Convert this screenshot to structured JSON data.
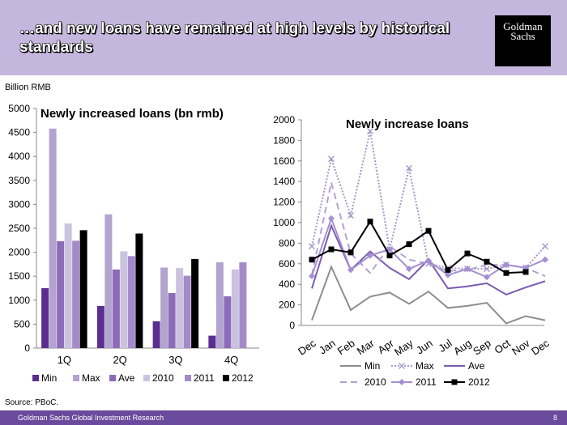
{
  "header": {
    "title": "…and new loans have remained at high levels by historical standards",
    "logo_line1": "Goldman",
    "logo_line2": "Sachs",
    "unit_label": "Billion RMB"
  },
  "footer": {
    "source": "Source: PBoC.",
    "left": "Goldman Sachs Global Investment Research",
    "page": "8"
  },
  "colors": {
    "header_bg": "#c4b6dd",
    "footer_bg": "#6a4a9c",
    "min": "#5b2d91",
    "max": "#b2a3cf",
    "ave": "#8c6cb8",
    "y2010": "#cbc2e0",
    "y2011": "#a58ac9",
    "y2012": "#000000",
    "line_min": "#8e8e8e",
    "line_max": "#a597c9",
    "line_ave": "#7a5cb0",
    "line_2010": "#b0a2d2",
    "line_2011": "#a58fd2"
  },
  "chart_data": [
    {
      "type": "bar",
      "title": "Newly increased loans (bn rmb)",
      "categories": [
        "1Q",
        "2Q",
        "3Q",
        "4Q"
      ],
      "ylim": [
        0,
        5000
      ],
      "yticks": [
        0,
        500,
        1000,
        1500,
        2000,
        2500,
        3000,
        3500,
        4000,
        4500,
        5000
      ],
      "legend_position": "bottom",
      "series": [
        {
          "name": "Min",
          "values": [
            1250,
            880,
            560,
            260
          ]
        },
        {
          "name": "Max",
          "values": [
            4580,
            2790,
            1680,
            1790
          ]
        },
        {
          "name": "Ave",
          "values": [
            2230,
            1640,
            1150,
            1080
          ]
        },
        {
          "name": "2010",
          "values": [
            2600,
            2020,
            1670,
            1640
          ]
        },
        {
          "name": "2011",
          "values": [
            2240,
            1920,
            1510,
            1790
          ]
        },
        {
          "name": "2012",
          "values": [
            2460,
            2390,
            1860,
            null
          ]
        }
      ]
    },
    {
      "type": "line",
      "title": "Newly increase loans",
      "categories": [
        "Dec",
        "Jan",
        "Feb",
        "Mar",
        "Apr",
        "May",
        "Jun",
        "Jul",
        "Aug",
        "Sep",
        "Oct",
        "Nov",
        "Dec"
      ],
      "ylim": [
        0,
        2000
      ],
      "yticks": [
        0,
        200,
        400,
        600,
        800,
        1000,
        1200,
        1400,
        1600,
        1800,
        2000
      ],
      "legend_position": "bottom",
      "series": [
        {
          "name": "Min",
          "values": [
            50,
            570,
            150,
            280,
            320,
            210,
            330,
            170,
            190,
            220,
            20,
            90,
            50
          ]
        },
        {
          "name": "Max",
          "values": [
            770,
            1620,
            1070,
            1890,
            740,
            1530,
            600,
            560,
            550,
            550,
            590,
            560,
            770
          ]
        },
        {
          "name": "Ave",
          "values": [
            360,
            970,
            540,
            720,
            560,
            450,
            640,
            360,
            380,
            410,
            300,
            370,
            430
          ]
        },
        {
          "name": "2010",
          "values": [
            490,
            1390,
            700,
            510,
            770,
            640,
            600,
            530,
            540,
            590,
            590,
            560,
            480
          ]
        },
        {
          "name": "2011",
          "values": [
            480,
            1040,
            540,
            680,
            740,
            550,
            630,
            490,
            550,
            470,
            590,
            560,
            640
          ]
        },
        {
          "name": "2012",
          "values": [
            640,
            740,
            710,
            1010,
            680,
            790,
            920,
            540,
            700,
            620,
            510,
            520,
            null
          ]
        }
      ]
    }
  ]
}
